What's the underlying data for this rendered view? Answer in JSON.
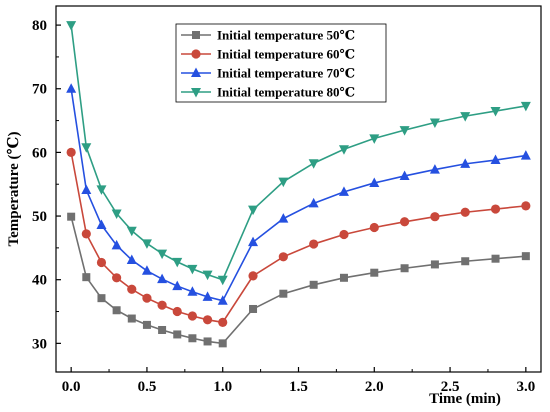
{
  "chart_data": {
    "type": "line",
    "xlabel": "Time (min)",
    "ylabel": "Temperature (℃)",
    "xlim": [
      -0.1,
      3.1
    ],
    "ylim": [
      25.5,
      83
    ],
    "xticks": [
      0.0,
      0.5,
      1.0,
      1.5,
      2.0,
      2.5,
      3.0
    ],
    "xtick_labels": [
      "0.0",
      "0.5",
      "1.0",
      "1.5",
      "2.0",
      "2.5",
      "3.0"
    ],
    "yticks": [
      30,
      40,
      50,
      60,
      70,
      80
    ],
    "ytick_labels": [
      "30",
      "40",
      "50",
      "60",
      "70",
      "80"
    ],
    "grid": false,
    "legend_position": "top-center",
    "series": [
      {
        "name": "Initial temperature 50℃",
        "color": "#707070",
        "marker": "square",
        "x": [
          0,
          0.1,
          0.2,
          0.3,
          0.4,
          0.5,
          0.6,
          0.7,
          0.8,
          0.9,
          1.0,
          1.2,
          1.4,
          1.6,
          1.8,
          2.0,
          2.2,
          2.4,
          2.6,
          2.8,
          3.0
        ],
        "y": [
          49.9,
          40.4,
          37.1,
          35.2,
          33.9,
          32.9,
          32.1,
          31.4,
          30.8,
          30.3,
          30.0,
          35.4,
          37.8,
          39.2,
          40.3,
          41.1,
          41.8,
          42.4,
          42.9,
          43.3,
          43.7
        ]
      },
      {
        "name": "Initial temperature 60℃",
        "color": "#c9483b",
        "marker": "circle",
        "x": [
          0,
          0.1,
          0.2,
          0.3,
          0.4,
          0.5,
          0.6,
          0.7,
          0.8,
          0.9,
          1.0,
          1.2,
          1.4,
          1.6,
          1.8,
          2.0,
          2.2,
          2.4,
          2.6,
          2.8,
          3.0
        ],
        "y": [
          60.0,
          47.2,
          42.7,
          40.3,
          38.5,
          37.1,
          36.0,
          35.0,
          34.3,
          33.7,
          33.3,
          40.6,
          43.6,
          45.6,
          47.1,
          48.2,
          49.1,
          49.9,
          50.6,
          51.1,
          51.6
        ]
      },
      {
        "name": "Initial temperature 70℃",
        "color": "#2550e0",
        "marker": "triangle-up",
        "x": [
          0,
          0.1,
          0.2,
          0.3,
          0.4,
          0.5,
          0.6,
          0.7,
          0.8,
          0.9,
          1.0,
          1.2,
          1.4,
          1.6,
          1.8,
          2.0,
          2.2,
          2.4,
          2.6,
          2.8,
          3.0
        ],
        "y": [
          70.0,
          54.1,
          48.6,
          45.4,
          43.1,
          41.4,
          40.1,
          39.0,
          38.1,
          37.3,
          36.7,
          45.9,
          49.6,
          52.0,
          53.8,
          55.2,
          56.3,
          57.3,
          58.2,
          58.8,
          59.5
        ]
      },
      {
        "name": "Initial temperature 80℃",
        "color": "#2e9e84",
        "marker": "triangle-down",
        "x": [
          0,
          0.1,
          0.2,
          0.3,
          0.4,
          0.5,
          0.6,
          0.7,
          0.8,
          0.9,
          1.0,
          1.2,
          1.4,
          1.6,
          1.8,
          2.0,
          2.2,
          2.4,
          2.6,
          2.8,
          3.0
        ],
        "y": [
          80.0,
          60.8,
          54.2,
          50.4,
          47.7,
          45.7,
          44.1,
          42.8,
          41.7,
          40.8,
          40.0,
          51.0,
          55.4,
          58.3,
          60.5,
          62.2,
          63.5,
          64.7,
          65.7,
          66.5,
          67.3
        ]
      }
    ]
  }
}
